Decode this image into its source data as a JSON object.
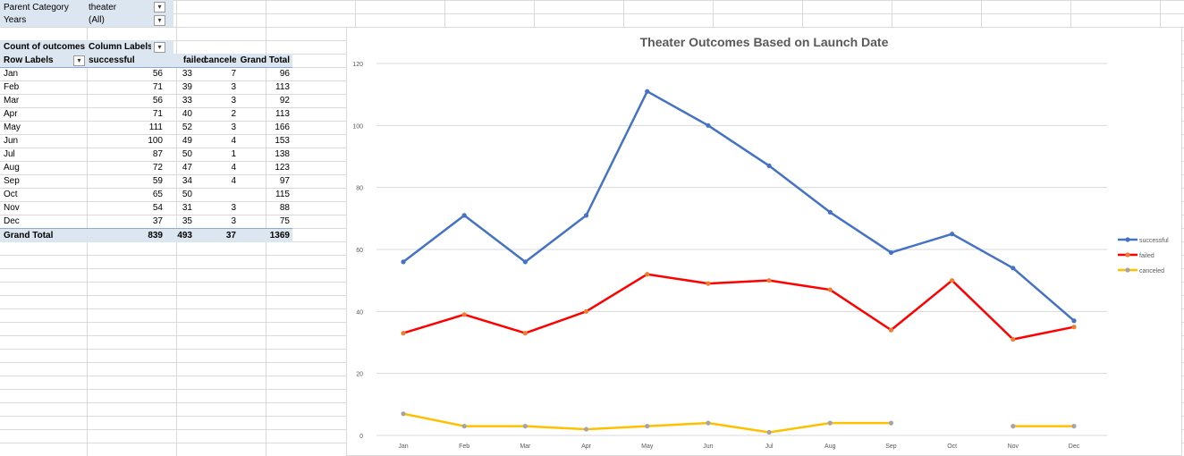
{
  "filters": [
    {
      "label": "Parent Category",
      "value": "theater",
      "icon": "filter-applied-icon"
    },
    {
      "label": "Years",
      "value": "(All)",
      "icon": "dropdown-arrow-icon"
    }
  ],
  "pivot": {
    "corner_label": "Count of outcomes",
    "column_labels": "Column Labels",
    "row_labels": "Row Labels",
    "columns": [
      "successful",
      "failed",
      "canceled",
      "Grand Total"
    ],
    "rows": [
      {
        "month": "Jan",
        "successful": "56",
        "failed": "33",
        "canceled": "7",
        "total": "96"
      },
      {
        "month": "Feb",
        "successful": "71",
        "failed": "39",
        "canceled": "3",
        "total": "113"
      },
      {
        "month": "Mar",
        "successful": "56",
        "failed": "33",
        "canceled": "3",
        "total": "92"
      },
      {
        "month": "Apr",
        "successful": "71",
        "failed": "40",
        "canceled": "2",
        "total": "113"
      },
      {
        "month": "May",
        "successful": "111",
        "failed": "52",
        "canceled": "3",
        "total": "166"
      },
      {
        "month": "Jun",
        "successful": "100",
        "failed": "49",
        "canceled": "4",
        "total": "153"
      },
      {
        "month": "Jul",
        "successful": "87",
        "failed": "50",
        "canceled": "1",
        "total": "138"
      },
      {
        "month": "Aug",
        "successful": "72",
        "failed": "47",
        "canceled": "4",
        "total": "123"
      },
      {
        "month": "Sep",
        "successful": "59",
        "failed": "34",
        "canceled": "4",
        "total": "97"
      },
      {
        "month": "Oct",
        "successful": "65",
        "failed": "50",
        "canceled": "",
        "total": "115"
      },
      {
        "month": "Nov",
        "successful": "54",
        "failed": "31",
        "canceled": "3",
        "total": "88"
      },
      {
        "month": "Dec",
        "successful": "37",
        "failed": "35",
        "canceled": "3",
        "total": "75"
      }
    ],
    "grand_total": {
      "label": "Grand Total",
      "successful": "839",
      "failed": "493",
      "canceled": "37",
      "total": "1369"
    }
  },
  "chart_data": {
    "type": "line",
    "title": "Theater Outcomes Based on Launch Date",
    "categories": [
      "Jan",
      "Feb",
      "Mar",
      "Apr",
      "May",
      "Jun",
      "Jul",
      "Aug",
      "Sep",
      "Oct",
      "Nov",
      "Dec"
    ],
    "series": [
      {
        "name": "successful",
        "color": "#4472c4",
        "values": [
          56,
          71,
          56,
          71,
          111,
          100,
          87,
          72,
          59,
          65,
          54,
          37
        ]
      },
      {
        "name": "failed",
        "color": "#ff0000",
        "values": [
          33,
          39,
          33,
          40,
          52,
          49,
          50,
          47,
          34,
          50,
          31,
          35
        ]
      },
      {
        "name": "canceled",
        "color": "#ffc000",
        "values": [
          7,
          3,
          3,
          2,
          3,
          4,
          1,
          4,
          4,
          null,
          3,
          3
        ]
      }
    ],
    "ylim": [
      0,
      120
    ],
    "yticks": [
      0,
      20,
      40,
      60,
      80,
      100,
      120
    ],
    "grid": true,
    "legend": "right"
  }
}
